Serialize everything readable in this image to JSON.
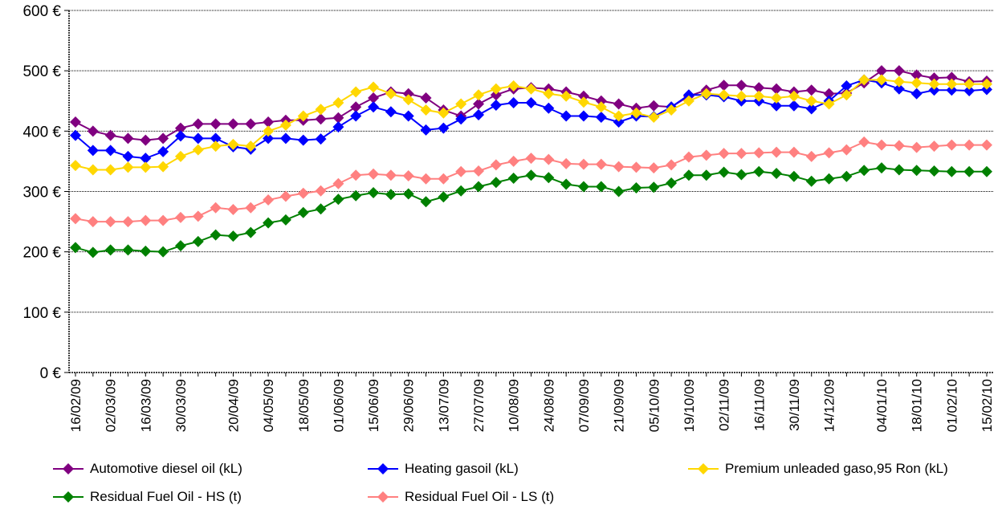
{
  "chart_data": {
    "type": "line",
    "title": "",
    "xlabel": "",
    "ylabel": "",
    "ylim": [
      0,
      600
    ],
    "yticks": [
      0,
      100,
      200,
      300,
      400,
      500,
      600
    ],
    "ytick_labels": [
      "0 €",
      "100 €",
      "200 €",
      "300 €",
      "400 €",
      "500 €",
      "600 €"
    ],
    "grid": "horizontal dotted",
    "legend_position": "bottom",
    "x": [
      "16/02/09",
      "23/02/09",
      "02/03/09",
      "09/03/09",
      "16/03/09",
      "23/03/09",
      "30/03/09",
      "06/04/09",
      "13/04/09",
      "20/04/09",
      "27/04/09",
      "04/05/09",
      "11/05/09",
      "18/05/09",
      "25/05/09",
      "01/06/09",
      "08/06/09",
      "15/06/09",
      "22/06/09",
      "29/06/09",
      "06/07/09",
      "13/07/09",
      "20/07/09",
      "27/07/09",
      "03/08/09",
      "10/08/09",
      "17/08/09",
      "24/08/09",
      "31/08/09",
      "07/09/09",
      "14/09/09",
      "21/09/09",
      "28/09/09",
      "05/10/09",
      "12/10/09",
      "19/10/09",
      "26/10/09",
      "02/11/09",
      "09/11/09",
      "16/11/09",
      "23/11/09",
      "30/11/09",
      "07/12/09",
      "14/12/09",
      "21/12/09",
      "28/12/09",
      "04/01/10",
      "11/01/10",
      "18/01/10",
      "25/01/10",
      "01/02/10",
      "08/02/10",
      "15/02/10"
    ],
    "x_tick_labels": [
      "16/02/09",
      "02/03/09",
      "16/03/09",
      "30/03/09",
      "20/04/09",
      "04/05/09",
      "18/05/09",
      "01/06/09",
      "15/06/09",
      "29/06/09",
      "13/07/09",
      "27/07/09",
      "10/08/09",
      "24/08/09",
      "07/09/09",
      "21/09/09",
      "05/10/09",
      "19/10/09",
      "02/11/09",
      "16/11/09",
      "30/11/09",
      "14/12/09",
      "04/01/10",
      "18/01/10",
      "01/02/10",
      "15/02/10"
    ],
    "series": [
      {
        "name": "Automotive diesel oil (kL)",
        "color": "#800080",
        "values": [
          415,
          400,
          393,
          388,
          385,
          388,
          405,
          412,
          412,
          412,
          412,
          415,
          418,
          418,
          420,
          422,
          440,
          455,
          465,
          462,
          455,
          435,
          425,
          445,
          460,
          470,
          472,
          470,
          465,
          458,
          450,
          445,
          438,
          442,
          440,
          458,
          468,
          476,
          476,
          472,
          470,
          465,
          468,
          462,
          463,
          480,
          500,
          500,
          493,
          488,
          489,
          482,
          483
        ]
      },
      {
        "name": "Heating gasoil (kL)",
        "color": "#0000FF",
        "values": [
          393,
          368,
          368,
          358,
          355,
          366,
          392,
          388,
          388,
          374,
          370,
          388,
          388,
          385,
          387,
          407,
          425,
          440,
          432,
          425,
          402,
          405,
          420,
          427,
          443,
          447,
          447,
          438,
          425,
          425,
          423,
          415,
          425,
          424,
          440,
          460,
          460,
          457,
          450,
          450,
          442,
          442,
          437,
          450,
          475,
          485,
          480,
          470,
          462,
          468,
          468,
          467,
          469
        ]
      },
      {
        "name": "Premium unleaded gaso,95 Ron (kL)",
        "color": "#FFD700",
        "values": [
          343,
          336,
          336,
          340,
          340,
          341,
          358,
          369,
          375,
          378,
          375,
          400,
          410,
          425,
          436,
          447,
          465,
          473,
          462,
          452,
          435,
          430,
          445,
          460,
          470,
          475,
          470,
          462,
          458,
          448,
          440,
          425,
          430,
          423,
          435,
          450,
          462,
          460,
          458,
          458,
          455,
          458,
          450,
          445,
          460,
          485,
          485,
          482,
          480,
          478,
          478,
          478,
          478
        ]
      },
      {
        "name": "Residual Fuel Oil - HS (t)",
        "color": "#008000",
        "values": [
          207,
          199,
          203,
          203,
          201,
          200,
          210,
          217,
          228,
          226,
          232,
          248,
          253,
          265,
          271,
          287,
          293,
          298,
          295,
          296,
          283,
          291,
          301,
          308,
          315,
          322,
          327,
          323,
          312,
          308,
          308,
          300,
          306,
          307,
          314,
          327,
          327,
          332,
          328,
          333,
          330,
          325,
          317,
          321,
          325,
          335,
          339,
          336,
          335,
          334,
          333,
          333,
          333
        ]
      },
      {
        "name": "Residual Fuel Oil - LS (t)",
        "color": "#FF8080",
        "values": [
          255,
          250,
          250,
          250,
          252,
          252,
          257,
          259,
          273,
          270,
          273,
          286,
          292,
          297,
          301,
          313,
          327,
          329,
          327,
          326,
          321,
          321,
          333,
          334,
          344,
          350,
          355,
          353,
          346,
          345,
          345,
          341,
          340,
          339,
          344,
          357,
          360,
          363,
          363,
          364,
          365,
          365,
          358,
          364,
          369,
          382,
          377,
          376,
          373,
          375,
          377,
          377,
          377
        ]
      }
    ]
  }
}
